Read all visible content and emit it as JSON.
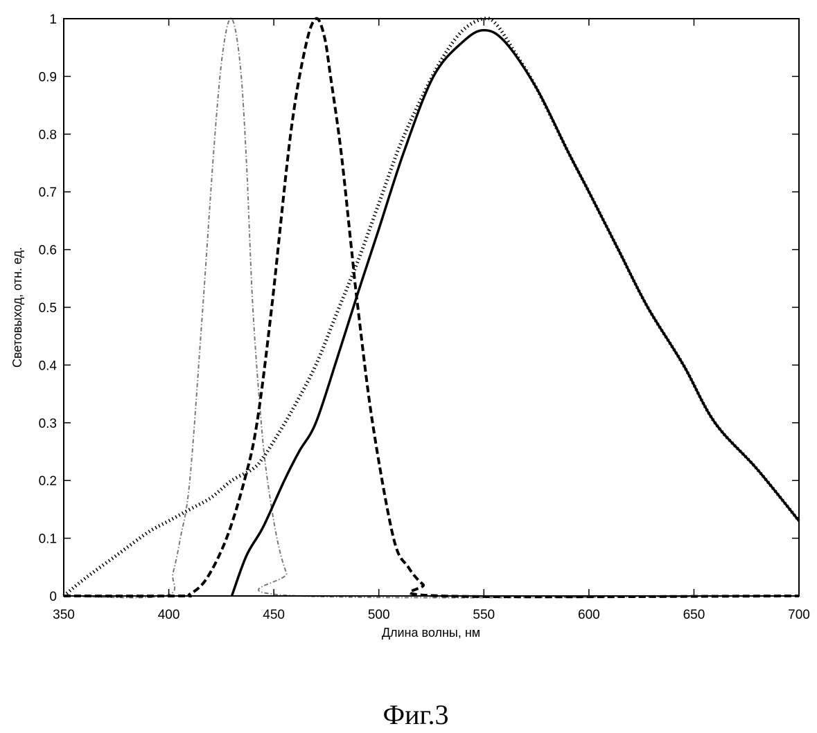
{
  "chart_data": {
    "type": "line",
    "title": "",
    "caption": "Фиг.3",
    "xlabel": "Длина волны, нм",
    "ylabel": "Световыход, отн. ед.",
    "xlim": [
      350,
      700
    ],
    "ylim": [
      0,
      1
    ],
    "xticks": [
      350,
      400,
      450,
      500,
      550,
      600,
      650,
      700
    ],
    "yticks": [
      0,
      0.1,
      0.2,
      0.3,
      0.4,
      0.5,
      0.6,
      0.7,
      0.8,
      0.9,
      1
    ],
    "grid": false,
    "series": [
      {
        "name": "dash-dot",
        "style": "dashdot",
        "color": "#777777",
        "x": [
          350,
          398,
          402,
          405.5,
          410,
          416,
          422,
          426,
          430,
          434,
          437,
          440,
          444,
          447,
          451.5,
          456,
          462,
          700
        ],
        "y": [
          0,
          0,
          0.04,
          0.1,
          0.2,
          0.49,
          0.8,
          0.95,
          1.0,
          0.92,
          0.75,
          0.5,
          0.3,
          0.2,
          0.1,
          0.04,
          0,
          0
        ]
      },
      {
        "name": "dashed",
        "style": "dashed",
        "color": "#000000",
        "x": [
          350,
          405,
          410,
          418,
          427.5,
          436,
          442,
          449,
          458,
          465,
          470,
          474,
          477,
          482,
          487,
          490,
          497,
          507,
          514,
          521,
          530,
          700
        ],
        "y": [
          0,
          0,
          0.003,
          0.03,
          0.1,
          0.2,
          0.3,
          0.5,
          0.8,
          0.95,
          1.0,
          0.97,
          0.9,
          0.77,
          0.6,
          0.5,
          0.3,
          0.1,
          0.05,
          0.02,
          0,
          0
        ]
      },
      {
        "name": "solid",
        "style": "solid",
        "color": "#000000",
        "x": [
          430,
          437,
          445,
          455,
          462,
          470,
          480,
          489.6,
          499.5,
          512,
          526,
          540,
          550,
          560,
          575,
          590,
          600,
          614,
          628,
          645,
          660,
          680,
          700
        ],
        "y": [
          0,
          0.07,
          0.12,
          0.2,
          0.25,
          0.3,
          0.41,
          0.52,
          0.63,
          0.77,
          0.9,
          0.96,
          0.98,
          0.96,
          0.88,
          0.77,
          0.7,
          0.6,
          0.5,
          0.4,
          0.3,
          0.22,
          0.13
        ]
      },
      {
        "name": "dotted",
        "style": "dotted",
        "color": "#000000",
        "x": [
          350,
          360,
          375,
          390,
          400,
          410,
          420,
          430,
          440,
          445,
          452,
          460,
          470,
          480,
          490,
          500,
          510,
          520,
          530,
          540,
          550,
          556,
          565,
          575,
          590,
          600,
          614,
          628,
          645,
          660,
          680,
          700
        ],
        "y": [
          0,
          0.03,
          0.07,
          0.11,
          0.13,
          0.15,
          0.17,
          0.2,
          0.22,
          0.24,
          0.28,
          0.33,
          0.4,
          0.49,
          0.58,
          0.68,
          0.78,
          0.86,
          0.93,
          0.98,
          1.0,
          0.99,
          0.94,
          0.88,
          0.77,
          0.7,
          0.6,
          0.5,
          0.4,
          0.3,
          0.22,
          0.13
        ]
      }
    ]
  }
}
